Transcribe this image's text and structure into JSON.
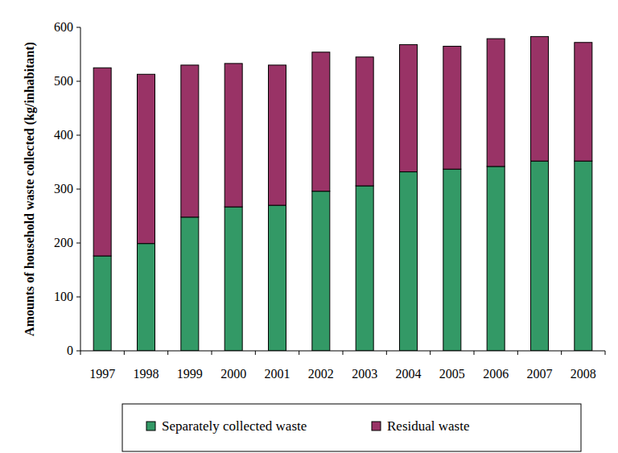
{
  "chart_data": {
    "type": "bar",
    "stacked": true,
    "grid": false,
    "legend": "bottom",
    "y_label": "Amounts of household waste collected (kg/inhabitant)",
    "categories": [
      "1997",
      "1998",
      "1999",
      "2000",
      "2001",
      "2002",
      "2003",
      "2004",
      "2005",
      "2006",
      "2007",
      "2008"
    ],
    "series": [
      {
        "name": "Separately collected waste",
        "color": "#339966",
        "values": [
          176,
          199,
          248,
          267,
          270,
          296,
          306,
          332,
          337,
          342,
          352,
          352
        ]
      },
      {
        "name": "Residual waste",
        "color": "#993366",
        "values": [
          349,
          314,
          282,
          266,
          260,
          258,
          239,
          236,
          228,
          237,
          231,
          220
        ]
      }
    ],
    "ylim": [
      0,
      600
    ],
    "yticks": [
      0,
      100,
      200,
      300,
      400,
      500,
      600
    ]
  }
}
